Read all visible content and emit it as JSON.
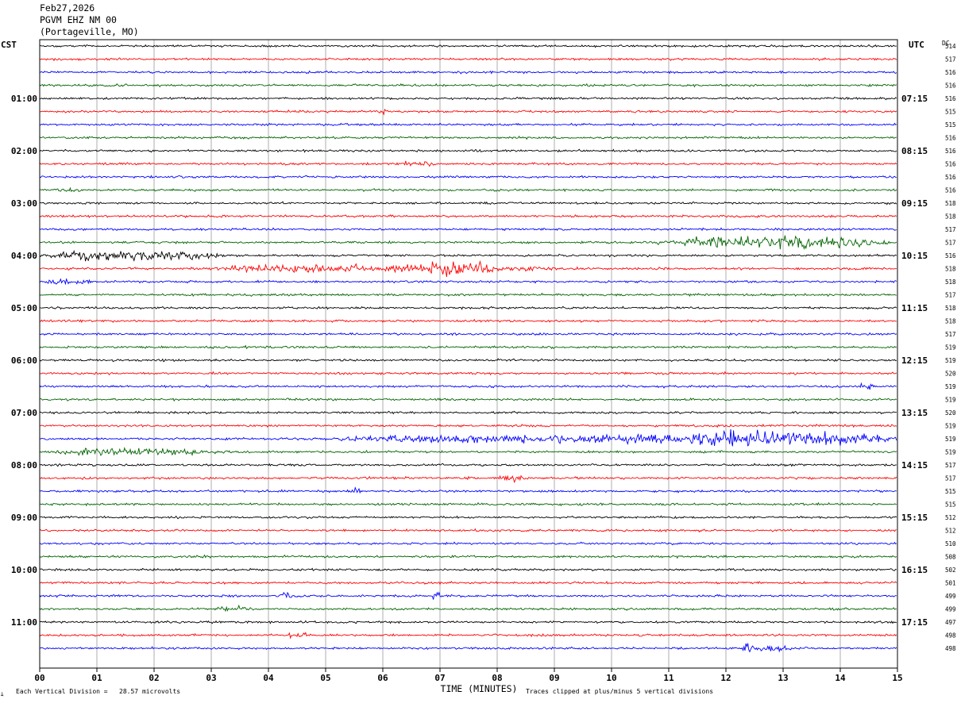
{
  "header": {
    "date": "Feb27,2026",
    "station": "PGVM EHZ NM 00",
    "location": "(Portageville, MO)"
  },
  "footer": {
    "logo_text": "ﾑ",
    "scale_text": "Each Vertical Division =   28.57 microvolts",
    "clip_text": "Traces clipped at plus/minus 5 vertical divisions"
  },
  "chart_data": {
    "type": "line",
    "title": "",
    "xlabel": "TIME (MINUTES)",
    "ylabel_left": "CST",
    "ylabel_right": "UTC",
    "dc_label": "DC",
    "xlim": [
      0,
      15
    ],
    "x_ticks": [
      "00",
      "01",
      "02",
      "03",
      "04",
      "05",
      "06",
      "07",
      "08",
      "09",
      "10",
      "11",
      "12",
      "13",
      "14",
      "15"
    ],
    "trace_colors": [
      "#000000",
      "#ff0000",
      "#0000ff",
      "#006400"
    ],
    "left_hour_labels": [
      "01:00",
      "02:00",
      "03:00",
      "04:00",
      "05:00",
      "06:00",
      "07:00",
      "08:00",
      "09:00",
      "10:00",
      "11:00"
    ],
    "right_hour_labels": [
      "07:15",
      "08:15",
      "09:15",
      "10:15",
      "11:15",
      "12:15",
      "13:15",
      "14:15",
      "15:15",
      "16:15",
      "17:15"
    ],
    "dc_offsets": [
      514,
      517,
      516,
      516,
      516,
      515,
      515,
      516,
      516,
      516,
      516,
      516,
      518,
      518,
      517,
      517,
      516,
      518,
      518,
      517,
      518,
      518,
      517,
      519,
      519,
      520,
      519,
      519,
      520,
      519,
      519,
      519,
      517,
      517,
      515,
      515,
      512,
      512,
      510,
      508,
      502,
      501,
      499,
      499,
      497,
      498,
      498
    ],
    "events": [
      {
        "trace": 5,
        "start_min": 5.9,
        "end_min": 6.1,
        "amp": 1.6
      },
      {
        "trace": 9,
        "start_min": 6.3,
        "end_min": 7.0,
        "amp": 1.6
      },
      {
        "trace": 11,
        "start_min": 0.2,
        "end_min": 0.8,
        "amp": 1.3
      },
      {
        "trace": 15,
        "start_min": 10.8,
        "end_min": 15.0,
        "amp": 3.0
      },
      {
        "trace": 15,
        "start_min": 12.5,
        "end_min": 13.8,
        "amp": 4.4
      },
      {
        "trace": 16,
        "start_min": 0.0,
        "end_min": 3.3,
        "amp": 2.6
      },
      {
        "trace": 17,
        "start_min": 2.5,
        "end_min": 9.5,
        "amp": 1.9
      },
      {
        "trace": 17,
        "start_min": 6.2,
        "end_min": 8.2,
        "amp": 4.0
      },
      {
        "trace": 18,
        "start_min": 0.0,
        "end_min": 1.0,
        "amp": 1.6
      },
      {
        "trace": 26,
        "start_min": 14.3,
        "end_min": 14.6,
        "amp": 2.0
      },
      {
        "trace": 30,
        "start_min": 4.5,
        "end_min": 15.0,
        "amp": 2.2
      },
      {
        "trace": 30,
        "start_min": 10.5,
        "end_min": 15.0,
        "amp": 3.4
      },
      {
        "trace": 30,
        "start_min": 11.5,
        "end_min": 13.2,
        "amp": 5.0
      },
      {
        "trace": 31,
        "start_min": 0.0,
        "end_min": 3.5,
        "amp": 1.8
      },
      {
        "trace": 33,
        "start_min": 8.0,
        "end_min": 8.5,
        "amp": 1.6
      },
      {
        "trace": 34,
        "start_min": 5.4,
        "end_min": 5.7,
        "amp": 1.6
      },
      {
        "trace": 42,
        "start_min": 4.2,
        "end_min": 4.4,
        "amp": 3.0
      },
      {
        "trace": 42,
        "start_min": 6.85,
        "end_min": 7.0,
        "amp": 3.0
      },
      {
        "trace": 43,
        "start_min": 3.0,
        "end_min": 3.8,
        "amp": 1.3
      },
      {
        "trace": 45,
        "start_min": 4.3,
        "end_min": 4.8,
        "amp": 1.4
      },
      {
        "trace": 46,
        "start_min": 12.3,
        "end_min": 12.5,
        "amp": 4.0
      },
      {
        "trace": 46,
        "start_min": 12.4,
        "end_min": 13.2,
        "amp": 1.6
      }
    ]
  }
}
